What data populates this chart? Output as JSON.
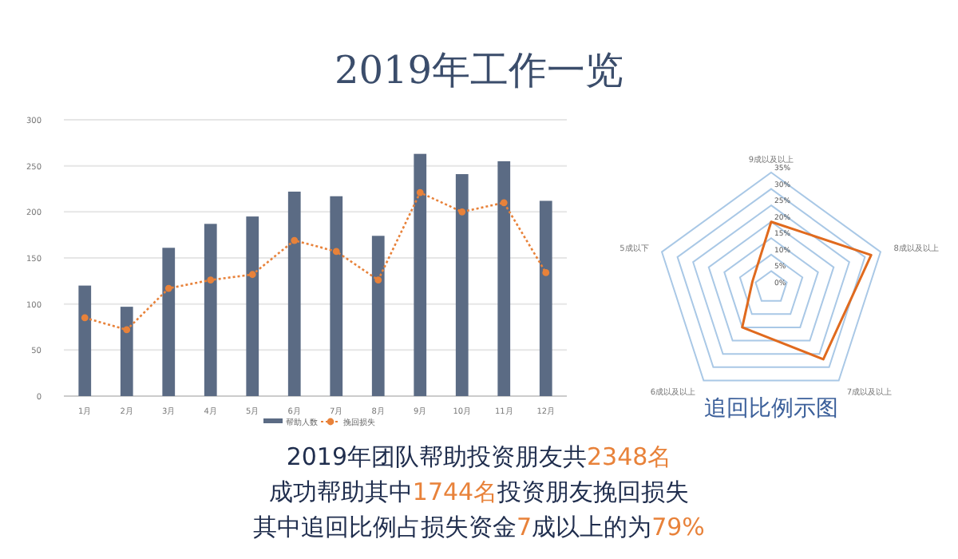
{
  "chart_data": [
    {
      "type": "bar",
      "title": "2019年工作一览",
      "categories": [
        "1月",
        "2月",
        "3月",
        "4月",
        "5月",
        "6月",
        "7月",
        "8月",
        "9月",
        "10月",
        "11月",
        "12月"
      ],
      "series": [
        {
          "name": "帮助人数",
          "type": "bar",
          "color": "#5b6b84",
          "values": [
            120,
            97,
            161,
            187,
            195,
            222,
            217,
            174,
            263,
            241,
            255,
            212
          ]
        },
        {
          "name": "挽回损失",
          "type": "line",
          "color": "#e8823a",
          "line_style": "dotted",
          "marker": "circle",
          "values": [
            85,
            72,
            117,
            126,
            132,
            169,
            157,
            126,
            221,
            200,
            210,
            134
          ]
        }
      ],
      "ylim": [
        0,
        300
      ],
      "yticks": [
        0,
        50,
        100,
        150,
        200,
        250,
        300
      ],
      "grid": "y",
      "legend": "bottom",
      "annotations": [
        "2019年团队帮助投资朋友共2348名",
        "成功帮助其中1744名投资朋友挽回损失",
        "其中追回比例占损失资金7成以上的为79%"
      ]
    },
    {
      "type": "radar",
      "title": "追回比例示图",
      "categories": [
        "9成以及以上",
        "8成以及以上",
        "7成以及以上",
        "6成以及以上",
        "5成以下"
      ],
      "series": [
        {
          "color": "#e06a1e",
          "values": [
            20,
            32,
            27,
            15,
            6
          ]
        }
      ],
      "ylim": [
        0,
        35
      ],
      "yticks": [
        {
          "value": 0,
          "label": "0%"
        },
        {
          "value": 5,
          "label": "5%"
        },
        {
          "value": 10,
          "label": "10%"
        },
        {
          "value": 15,
          "label": "15%"
        },
        {
          "value": 20,
          "label": "20%"
        },
        {
          "value": 25,
          "label": "25%"
        },
        {
          "value": 30,
          "label": "30%"
        },
        {
          "value": 35,
          "label": "35%"
        }
      ],
      "grid": true
    }
  ]
}
